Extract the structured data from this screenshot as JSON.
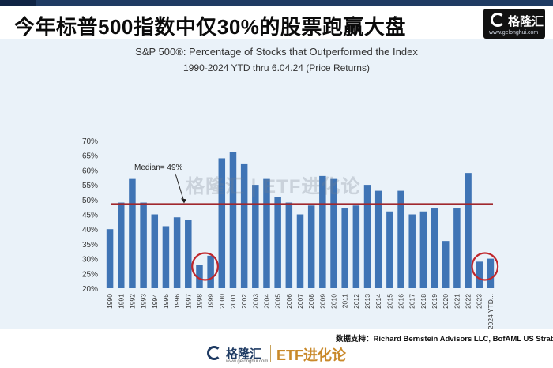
{
  "headline": "今年标普500指数中仅30%的股票跑赢大盘",
  "logo": {
    "name": "格隆汇",
    "site": "www.gelonghui.com"
  },
  "watermark": "格隆汇 | ETF进化论",
  "source": "数据支持：Richard Bernstein Advisors LLC, BofAML US Strategy",
  "bottom_brand": {
    "name": "格隆汇",
    "site": "www.gelonghui.com",
    "etf": "ETF进化论"
  },
  "colors": {
    "bar": "#3f74b5",
    "median_line": "#a0282e",
    "circle": "#c0262b",
    "background": "#eaf2f9"
  },
  "chart_data": {
    "type": "bar",
    "title": "S&P 500®:  Percentage of Stocks that Outperformed the Index",
    "subtitle": "1990-2024 YTD thru 6.04.24  (Price Returns)",
    "categories": [
      "1990",
      "1991",
      "1992",
      "1993",
      "1994",
      "1995",
      "1996",
      "1997",
      "1998",
      "1999",
      "2000",
      "2001",
      "2002",
      "2003",
      "2004",
      "2005",
      "2006",
      "2007",
      "2008",
      "2009",
      "2010",
      "2011",
      "2012",
      "2013",
      "2014",
      "2015",
      "2016",
      "2017",
      "2018",
      "2019",
      "2020",
      "2021",
      "2022",
      "2023",
      "2024 YTD..."
    ],
    "values": [
      40,
      49,
      57,
      49,
      45,
      41,
      44,
      43,
      28,
      31,
      64,
      66,
      62,
      55,
      57,
      51,
      49,
      45,
      48,
      58,
      57,
      47,
      48,
      55,
      53,
      46,
      53,
      45,
      46,
      47,
      36,
      47,
      59,
      29,
      30
    ],
    "ylim": [
      20,
      70
    ],
    "yticks": [
      "20%",
      "25%",
      "30%",
      "35%",
      "40%",
      "45%",
      "50%",
      "55%",
      "60%",
      "65%",
      "70%"
    ],
    "median": 48.5,
    "median_label": "Median= 49%",
    "highlighted": [
      "1998",
      "1999",
      "2023",
      "2024 YTD..."
    ]
  }
}
